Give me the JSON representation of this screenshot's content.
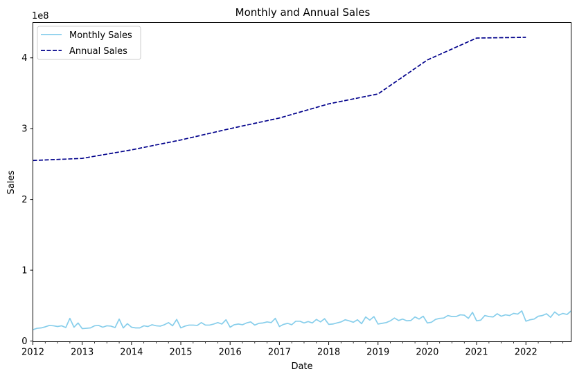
{
  "chart_data": {
    "type": "line",
    "title": "Monthly and Annual Sales",
    "xlabel": "Date",
    "ylabel": "Sales",
    "y_scale_label": "1e8",
    "y_multiplier": 100000000,
    "xlim": [
      "2012-01",
      "2022-12"
    ],
    "ylim": [
      -1000000,
      450000000
    ],
    "x_ticks": [
      "2012",
      "2013",
      "2014",
      "2015",
      "2016",
      "2017",
      "2018",
      "2019",
      "2020",
      "2021",
      "2022"
    ],
    "y_ticks": [
      0,
      100000000,
      200000000,
      300000000,
      400000000
    ],
    "y_tick_labels": [
      "0",
      "1",
      "2",
      "3",
      "4"
    ],
    "grid": false,
    "legend_position": "top-left",
    "series": [
      {
        "name": "Monthly Sales",
        "color": "#87ceeb",
        "dash": "solid",
        "x": [
          "2012-01",
          "2012-02",
          "2012-03",
          "2012-04",
          "2012-05",
          "2012-06",
          "2012-07",
          "2012-08",
          "2012-09",
          "2012-10",
          "2012-11",
          "2012-12",
          "2013-01",
          "2013-02",
          "2013-03",
          "2013-04",
          "2013-05",
          "2013-06",
          "2013-07",
          "2013-08",
          "2013-09",
          "2013-10",
          "2013-11",
          "2013-12",
          "2014-01",
          "2014-02",
          "2014-03",
          "2014-04",
          "2014-05",
          "2014-06",
          "2014-07",
          "2014-08",
          "2014-09",
          "2014-10",
          "2014-11",
          "2014-12",
          "2015-01",
          "2015-02",
          "2015-03",
          "2015-04",
          "2015-05",
          "2015-06",
          "2015-07",
          "2015-08",
          "2015-09",
          "2015-10",
          "2015-11",
          "2015-12",
          "2016-01",
          "2016-02",
          "2016-03",
          "2016-04",
          "2016-05",
          "2016-06",
          "2016-07",
          "2016-08",
          "2016-09",
          "2016-10",
          "2016-11",
          "2016-12",
          "2017-01",
          "2017-02",
          "2017-03",
          "2017-04",
          "2017-05",
          "2017-06",
          "2017-07",
          "2017-08",
          "2017-09",
          "2017-10",
          "2017-11",
          "2017-12",
          "2018-01",
          "2018-02",
          "2018-03",
          "2018-04",
          "2018-05",
          "2018-06",
          "2018-07",
          "2018-08",
          "2018-09",
          "2018-10",
          "2018-11",
          "2018-12",
          "2019-01",
          "2019-02",
          "2019-03",
          "2019-04",
          "2019-05",
          "2019-06",
          "2019-07",
          "2019-08",
          "2019-09",
          "2019-10",
          "2019-11",
          "2019-12",
          "2020-01",
          "2020-02",
          "2020-03",
          "2020-04",
          "2020-05",
          "2020-06",
          "2020-07",
          "2020-08",
          "2020-09",
          "2020-10",
          "2020-11",
          "2020-12",
          "2021-01",
          "2021-02",
          "2021-03",
          "2021-04",
          "2021-05",
          "2021-06",
          "2021-07",
          "2021-08",
          "2021-09",
          "2021-10",
          "2021-11",
          "2021-12",
          "2022-01",
          "2022-02",
          "2022-03",
          "2022-04",
          "2022-05",
          "2022-06",
          "2022-07",
          "2022-08",
          "2022-09",
          "2022-10",
          "2022-11",
          "2022-12"
        ],
        "values": [
          16000000,
          18000000,
          18500000,
          20000000,
          22000000,
          21500000,
          20500000,
          21500000,
          19000000,
          32000000,
          19500000,
          25500000,
          17500000,
          18000000,
          18500000,
          21500000,
          22000000,
          19500000,
          21500000,
          21000000,
          19000000,
          31000000,
          18500000,
          24500000,
          19500000,
          18500000,
          18500000,
          21500000,
          20500000,
          23000000,
          21500000,
          21000000,
          23000000,
          26000000,
          21500000,
          30500000,
          18500000,
          21000000,
          22500000,
          22500000,
          22000000,
          26000000,
          22500000,
          22500000,
          24000000,
          26000000,
          24000000,
          30000000,
          19500000,
          23000000,
          24000000,
          23000000,
          25500000,
          27000000,
          22500000,
          25000000,
          25500000,
          27000000,
          26000000,
          32000000,
          20500000,
          23500000,
          25000000,
          23000000,
          28000000,
          28000000,
          25500000,
          27500000,
          25500000,
          30500000,
          27000000,
          31500000,
          23500000,
          24000000,
          25500000,
          27000000,
          30000000,
          28500000,
          26500000,
          30000000,
          24500000,
          34000000,
          29500000,
          34500000,
          24000000,
          25000000,
          26000000,
          28500000,
          32500000,
          29000000,
          31000000,
          28500000,
          29000000,
          34000000,
          31000000,
          35000000,
          25500000,
          26500000,
          30500000,
          32000000,
          32500000,
          36000000,
          34500000,
          34500000,
          37000000,
          36500000,
          32000000,
          40500000,
          28500000,
          29500000,
          36000000,
          34500000,
          34000000,
          38500000,
          35000000,
          37000000,
          36000000,
          39000000,
          38000000,
          42500000,
          28000000,
          30000000,
          31000000,
          35000000,
          36000000,
          38500000,
          33500000,
          41000000,
          36500000,
          39000000,
          37500000,
          42500000
        ]
      },
      {
        "name": "Annual Sales",
        "color": "#00008b",
        "dash": "dashed",
        "x": [
          "2012-01",
          "2013-01",
          "2014-01",
          "2015-01",
          "2016-01",
          "2017-01",
          "2018-01",
          "2019-01",
          "2020-01",
          "2021-01",
          "2022-01"
        ],
        "values": [
          255000000,
          258000000,
          270000000,
          284000000,
          300000000,
          315000000,
          335000000,
          349000000,
          397000000,
          428000000,
          429000000
        ]
      }
    ]
  }
}
